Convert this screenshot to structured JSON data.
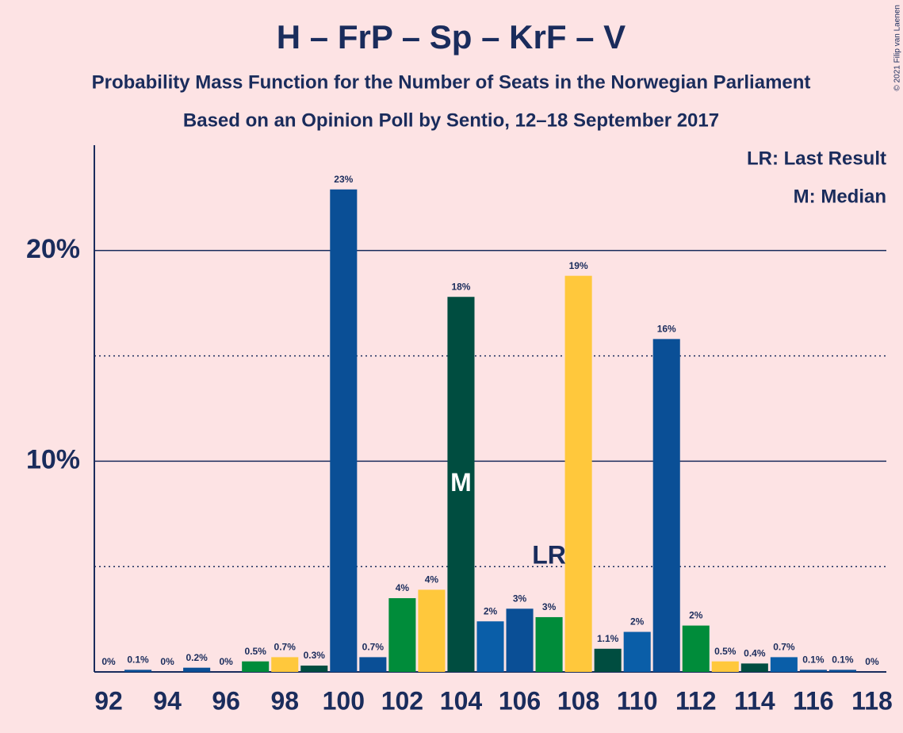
{
  "chart_data": {
    "type": "bar",
    "title": "H – FrP – Sp – KrF – V",
    "subtitle": "Probability Mass Function for the Number of Seats in the Norwegian Parliament",
    "subtitle2": "Based on an Opinion Poll by Sentio, 12–18 September 2017",
    "x": [
      92,
      93,
      94,
      95,
      96,
      97,
      98,
      99,
      100,
      101,
      102,
      103,
      104,
      105,
      106,
      107,
      108,
      109,
      110,
      111,
      112,
      113,
      114,
      115,
      116,
      117,
      118
    ],
    "values": [
      0,
      0.1,
      0,
      0.2,
      0,
      0.5,
      0.7,
      0.3,
      22.9,
      0.7,
      3.5,
      3.9,
      17.8,
      2.4,
      3.0,
      2.6,
      18.8,
      1.1,
      1.9,
      15.8,
      2.2,
      0.5,
      0.4,
      0.7,
      0.1,
      0.1,
      0
    ],
    "value_labels": [
      "0%",
      "0.1%",
      "0%",
      "0.2%",
      "0%",
      "0.5%",
      "0.7%",
      "0.3%",
      "23%",
      "0.7%",
      "4%",
      "4%",
      "18%",
      "2%",
      "3%",
      "3%",
      "19%",
      "1.1%",
      "2%",
      "16%",
      "2%",
      "0.5%",
      "0.4%",
      "0.7%",
      "0.1%",
      "0.1%",
      "0%"
    ],
    "colors": [
      "#0a4f96",
      "#0a4f96",
      "#0a4f96",
      "#0a4f96",
      "#0a4f96",
      "#008c3a",
      "#ffc83c",
      "#004d40",
      "#0a4f96",
      "#0a4f96",
      "#008c3a",
      "#ffc83c",
      "#004d40",
      "#0a5ea8",
      "#0a4f96",
      "#008c3a",
      "#ffc83c",
      "#004d40",
      "#0a5ea8",
      "#0a4f96",
      "#008c3a",
      "#ffc83c",
      "#004d40",
      "#0a5ea8",
      "#0a4f96",
      "#0a4f96",
      "#0a4f96"
    ],
    "xlim": [
      91.5,
      118.5
    ],
    "xticks": [
      92,
      94,
      96,
      98,
      100,
      102,
      104,
      106,
      108,
      110,
      112,
      114,
      116,
      118
    ],
    "ylim": [
      0,
      25
    ],
    "yticks": [
      {
        "value": 10,
        "label": "10%"
      },
      {
        "value": 20,
        "label": "20%"
      }
    ],
    "minor_yticks": [
      5,
      15
    ],
    "annotations": [
      {
        "text": "M",
        "x": 104
      },
      {
        "text": "LR",
        "x": 107
      }
    ],
    "legend": [
      "LR: Last Result",
      "M: Median"
    ],
    "credit": "© 2021 Filip van Laenen"
  }
}
